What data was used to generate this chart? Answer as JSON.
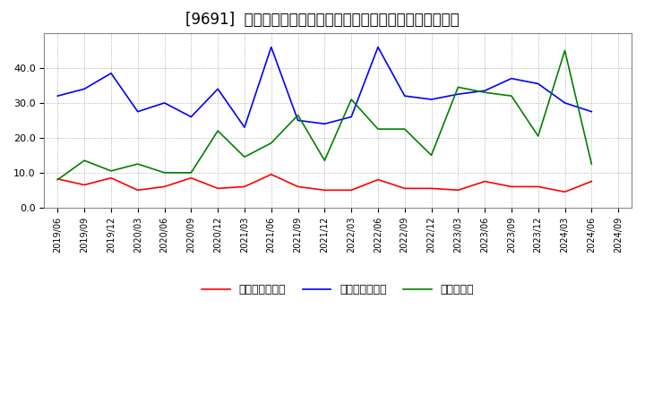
{
  "title": "[9691]  売上債権回転率、買入債務回転率、在庫回転率の推移",
  "dates": [
    "2019/06",
    "2019/09",
    "2019/12",
    "2020/03",
    "2020/06",
    "2020/09",
    "2020/12",
    "2021/03",
    "2021/06",
    "2021/09",
    "2021/12",
    "2022/03",
    "2022/06",
    "2022/09",
    "2022/12",
    "2023/03",
    "2023/06",
    "2023/09",
    "2023/12",
    "2024/03",
    "2024/06",
    "2024/09"
  ],
  "receivables_turnover": [
    8.2,
    6.5,
    8.5,
    5.0,
    6.0,
    8.5,
    5.5,
    6.0,
    9.5,
    6.0,
    5.0,
    5.0,
    8.0,
    5.5,
    5.5,
    5.0,
    7.5,
    6.0,
    6.0,
    4.5,
    7.5,
    null
  ],
  "payables_turnover": [
    32.0,
    34.0,
    38.5,
    27.5,
    30.0,
    26.0,
    34.0,
    23.0,
    46.0,
    25.0,
    24.0,
    26.0,
    46.0,
    32.0,
    31.0,
    32.5,
    33.5,
    37.0,
    35.5,
    30.0,
    27.5,
    null
  ],
  "inventory_turnover": [
    8.0,
    13.5,
    10.5,
    12.5,
    10.0,
    10.0,
    22.0,
    14.5,
    18.5,
    26.5,
    13.5,
    31.0,
    22.5,
    22.5,
    15.0,
    34.5,
    33.0,
    32.0,
    20.5,
    45.0,
    12.5,
    null
  ],
  "legend_labels": [
    "売上債権回転率",
    "買入債務回転率",
    "在庫回転率"
  ],
  "line_colors": [
    "#ff0000",
    "#0000ff",
    "#008000"
  ],
  "ylim": [
    0.0,
    50.0
  ],
  "yticks": [
    0.0,
    10.0,
    20.0,
    30.0,
    40.0
  ],
  "background_color": "#ffffff",
  "plot_bg_color": "#ffffff",
  "grid_color": "#aaaaaa",
  "title_fontsize": 12,
  "tick_fontsize": 8,
  "legend_fontsize": 9
}
